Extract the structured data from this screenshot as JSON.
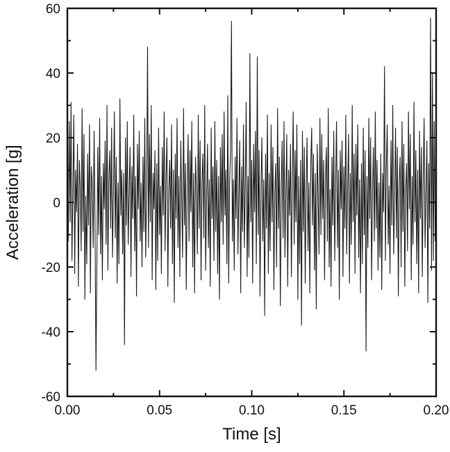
{
  "figure": {
    "background": "#ffffff",
    "line_color": "#1a1a1a",
    "axis_color": "#111111"
  },
  "chart_data": {
    "type": "line",
    "title": "",
    "xlabel": "Time [s]",
    "ylabel": "Acceleration [g]",
    "xlim": [
      0,
      0.2
    ],
    "ylim": [
      -60,
      60
    ],
    "grid": false,
    "legend": false,
    "frame": true,
    "tick_direction": "in",
    "x_ticks": [
      0,
      0.05,
      0.1,
      0.15,
      0.2
    ],
    "x_tick_labels": [
      "0.00",
      "0.05",
      "0.10",
      "0.15",
      "0.20"
    ],
    "x_minor_ticks": [
      0.025,
      0.075,
      0.125,
      0.175
    ],
    "y_ticks": [
      -60,
      -40,
      -20,
      0,
      20,
      40,
      60
    ],
    "y_tick_labels": [
      "-60",
      "-40",
      "-20",
      "0",
      "20",
      "40",
      "60"
    ],
    "y_minor_ticks": [
      -50,
      -30,
      -10,
      10,
      30,
      50
    ],
    "x_start": 0,
    "x_step": 0.0005,
    "values": [
      8,
      -12,
      25,
      -6,
      31,
      -18,
      4,
      27,
      -22,
      10,
      -3,
      18,
      -26,
      13,
      5,
      -15,
      29,
      -9,
      21,
      -30,
      2,
      -19,
      15,
      -7,
      24,
      -28,
      11,
      6,
      -14,
      22,
      -5,
      -52,
      -20,
      17,
      -10,
      26,
      -16,
      8,
      -24,
      12,
      -2,
      19,
      -13,
      30,
      -21,
      7,
      16,
      -8,
      23,
      -17,
      3,
      28,
      -11,
      14,
      -25,
      6,
      -19,
      32,
      -4,
      10,
      -16,
      9,
      -44,
      20,
      -7,
      25,
      -13,
      2,
      17,
      -23,
      11,
      -5,
      27,
      -15,
      8,
      -29,
      18,
      -2,
      22,
      -12,
      6,
      -20,
      14,
      -9,
      26,
      -17,
      4,
      48,
      -14,
      21,
      -6,
      30,
      -24,
      9,
      -2,
      16,
      -27,
      12,
      -18,
      23,
      -10,
      5,
      -22,
      17,
      -4,
      28,
      -15,
      7,
      20,
      -26,
      3,
      13,
      -8,
      24,
      -19,
      10,
      -31,
      15,
      -5,
      26,
      -14,
      8,
      -23,
      19,
      2,
      -17,
      29,
      -7,
      12,
      -27,
      5,
      21,
      -12,
      16,
      -3,
      25,
      -20,
      9,
      -28,
      14,
      4,
      -16,
      27,
      -8,
      19,
      -24,
      6,
      15,
      -11,
      30,
      -21,
      2,
      18,
      -14,
      7,
      -26,
      23,
      -5,
      11,
      -18,
      25,
      -9,
      13,
      -22,
      8,
      -30,
      17,
      -6,
      21,
      -13,
      28,
      -4,
      10,
      -19,
      33,
      -25,
      6,
      16,
      56,
      -12,
      7,
      -21,
      14,
      -5,
      26,
      -16,
      2,
      19,
      -28,
      11,
      -9,
      24,
      -14,
      5,
      31,
      -23,
      8,
      -17,
      46,
      -6,
      13,
      -25,
      18,
      -3,
      22,
      -19,
      45,
      -10,
      16,
      -29,
      4,
      20,
      -12,
      7,
      -35,
      15,
      -8,
      27,
      -22,
      9,
      -15,
      24,
      -6,
      17,
      -27,
      3,
      12,
      -20,
      29,
      -8,
      14,
      -32,
      5,
      19,
      -11,
      25,
      -17,
      2,
      21,
      -26,
      10,
      -4,
      18,
      -23,
      7,
      28,
      -13,
      16,
      -6,
      24,
      -30,
      8,
      -19,
      13,
      -38,
      22,
      -9,
      17,
      -25,
      4,
      20,
      -15,
      6,
      -28,
      12,
      23,
      -7,
      15,
      -21,
      9,
      -33,
      18,
      2,
      -16,
      26,
      -10,
      21,
      -5,
      13,
      -24,
      8,
      17,
      -12,
      29,
      -20,
      4,
      -26,
      14,
      -7,
      22,
      -18,
      6,
      25,
      -14,
      10,
      -30,
      16,
      -2,
      19,
      -23,
      11,
      -8,
      27,
      -16,
      5,
      21,
      -25,
      9,
      -13,
      30,
      -6,
      15,
      -22,
      18,
      -4,
      24,
      -17,
      7,
      -28,
      12,
      -19,
      23,
      -10,
      16,
      -46,
      8,
      -14,
      26,
      -5,
      20,
      -24,
      3,
      17,
      -12,
      28,
      -8,
      13,
      -21,
      6,
      -17,
      15,
      -27,
      9,
      -3,
      42,
      -18,
      11,
      24,
      -13,
      5,
      -22,
      19,
      -7,
      30,
      -16,
      2,
      23,
      -11,
      17,
      -29,
      6,
      14,
      -20,
      25,
      -9,
      18,
      -26,
      4,
      12,
      -15,
      28,
      -2,
      21,
      -24,
      8,
      -13,
      31,
      -6,
      16,
      -19,
      10,
      -28,
      22,
      -5,
      17,
      -23,
      7,
      26,
      -14,
      3,
      19,
      -31,
      12,
      -8,
      57,
      -21,
      40,
      -18,
      25,
      -12
    ]
  }
}
